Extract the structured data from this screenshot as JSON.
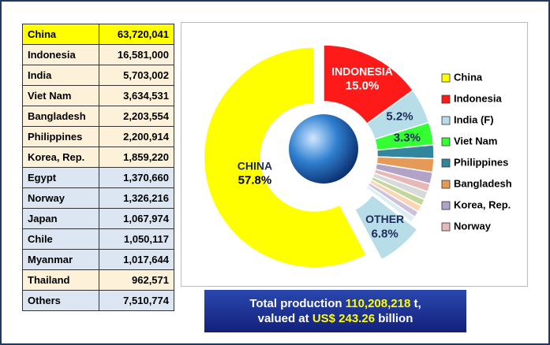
{
  "table": {
    "rows": [
      [
        "China",
        "63,720,041"
      ],
      [
        "Indonesia",
        "16,581,000"
      ],
      [
        "India",
        "5,703,002"
      ],
      [
        "Viet Nam",
        "3,634,531"
      ],
      [
        "Bangladesh",
        "2,203,554"
      ],
      [
        "Philippines",
        "2,200,914"
      ],
      [
        "Korea, Rep.",
        "1,859,220"
      ],
      [
        "Egypt",
        "1,370,660"
      ],
      [
        "Norway",
        "1,326,216"
      ],
      [
        "Japan",
        "1,067,974"
      ],
      [
        "Chile",
        "1,050,117"
      ],
      [
        "Myanmar",
        "1,017,644"
      ],
      [
        "Thailand",
        "962,571"
      ],
      [
        "Others",
        "7,510,774"
      ]
    ]
  },
  "chart_data": {
    "type": "pie",
    "categories": [
      "China",
      "Indonesia",
      "India (F)",
      "Viet Nam",
      "Philippines",
      "Bangladesh",
      "Korea, Rep.",
      "Norway",
      null,
      null,
      null,
      null,
      null,
      null
    ],
    "values": [
      57.8,
      15.0,
      5.2,
      3.3,
      2.0,
      2.0,
      1.7,
      1.2,
      1.2,
      1.0,
      1.0,
      0.9,
      0.9,
      6.8
    ],
    "value_labels": [
      "57.8%",
      "15.0%",
      "5.2%",
      "3.3%",
      null,
      null,
      null,
      null,
      null,
      null,
      null,
      null,
      null,
      "6.8%"
    ],
    "slice_labels": [
      "CHINA",
      "INDONESIA",
      null,
      null,
      null,
      null,
      null,
      null,
      null,
      null,
      null,
      null,
      null,
      "OTHER"
    ],
    "colors": [
      "#ffff00",
      "#ff1a1a",
      "#b7dde8",
      "#33ff33",
      "#31859c",
      "#e59b55",
      "#b3a2c7",
      "#e6b9b8",
      "#d9d9d9",
      "#c4d79b",
      "#fcd5b5",
      "#ccc0da",
      "#dbeef4",
      "#b7dde8"
    ]
  },
  "summary": {
    "line1": [
      "Total production ",
      "110,208,218",
      " t,"
    ],
    "line2": [
      "valued at ",
      "US$ 243.26",
      " billion"
    ]
  }
}
